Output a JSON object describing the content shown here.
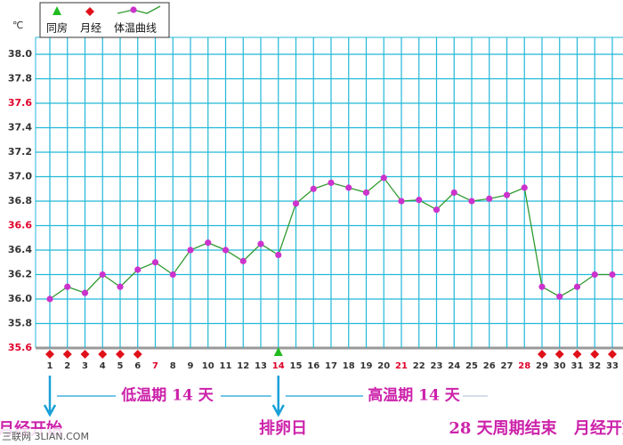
{
  "chart_data": {
    "type": "line",
    "unit_label": "℃",
    "categories": [
      "1",
      "2",
      "3",
      "4",
      "5",
      "6",
      "7",
      "8",
      "9",
      "10",
      "11",
      "12",
      "13",
      "14",
      "15",
      "16",
      "17",
      "18",
      "19",
      "20",
      "21",
      "22",
      "23",
      "24",
      "25",
      "26",
      "27",
      "28",
      "29",
      "30",
      "31",
      "32",
      "33"
    ],
    "highlighted_categories": [
      "7",
      "14",
      "21",
      "28"
    ],
    "highlight_color": "#e0002a",
    "series": [
      {
        "name": "体温曲线",
        "color": "#2f9a2f",
        "marker_color": "#cc33cc",
        "values": [
          36.0,
          36.1,
          36.05,
          36.2,
          36.1,
          36.24,
          36.3,
          36.2,
          36.4,
          36.46,
          36.4,
          36.31,
          36.45,
          36.36,
          36.78,
          36.9,
          36.95,
          36.91,
          36.87,
          36.99,
          36.8,
          36.81,
          36.73,
          36.87,
          36.8,
          36.82,
          36.85,
          36.91,
          36.1,
          36.02,
          36.1,
          36.2,
          36.2
        ]
      }
    ],
    "events": [
      {
        "name": "同房",
        "color": "#22bb22",
        "marker": "triangle",
        "days": [
          "14"
        ]
      },
      {
        "name": "月经",
        "color": "#e0101a",
        "marker": "diamond",
        "days": [
          "1",
          "2",
          "3",
          "4",
          "5",
          "6",
          "29",
          "30",
          "31",
          "32",
          "33"
        ]
      }
    ],
    "ylim": [
      35.6,
      38.0
    ],
    "yticks": [
      {
        "value": 35.6,
        "label": "35.6",
        "color": "#e0002a"
      },
      {
        "value": 35.8,
        "label": "35.8",
        "color": "#333333"
      },
      {
        "value": 36.0,
        "label": "36.0",
        "color": "#333333"
      },
      {
        "value": 36.2,
        "label": "36.2",
        "color": "#333333"
      },
      {
        "value": 36.4,
        "label": "36.4",
        "color": "#333333"
      },
      {
        "value": 36.6,
        "label": "36.6",
        "color": "#e0002a"
      },
      {
        "value": 36.8,
        "label": "36.8",
        "color": "#333333"
      },
      {
        "value": 37.0,
        "label": "37.0",
        "color": "#333333"
      },
      {
        "value": 37.2,
        "label": "37.2",
        "color": "#333333"
      },
      {
        "value": 37.4,
        "label": "37.4",
        "color": "#333333"
      },
      {
        "value": 37.6,
        "label": "37.6",
        "color": "#e0002a"
      },
      {
        "value": 37.8,
        "label": "37.8",
        "color": "#333333"
      },
      {
        "value": 38.0,
        "label": "38.0",
        "color": "#333333"
      }
    ],
    "grid": true,
    "annotations": [
      "低温期 14 天",
      "高温期 14 天",
      "排卵日",
      "28 天周期结束",
      "月经开始",
      "月经开始"
    ],
    "watermark": "三联网 3LIAN.COM"
  }
}
